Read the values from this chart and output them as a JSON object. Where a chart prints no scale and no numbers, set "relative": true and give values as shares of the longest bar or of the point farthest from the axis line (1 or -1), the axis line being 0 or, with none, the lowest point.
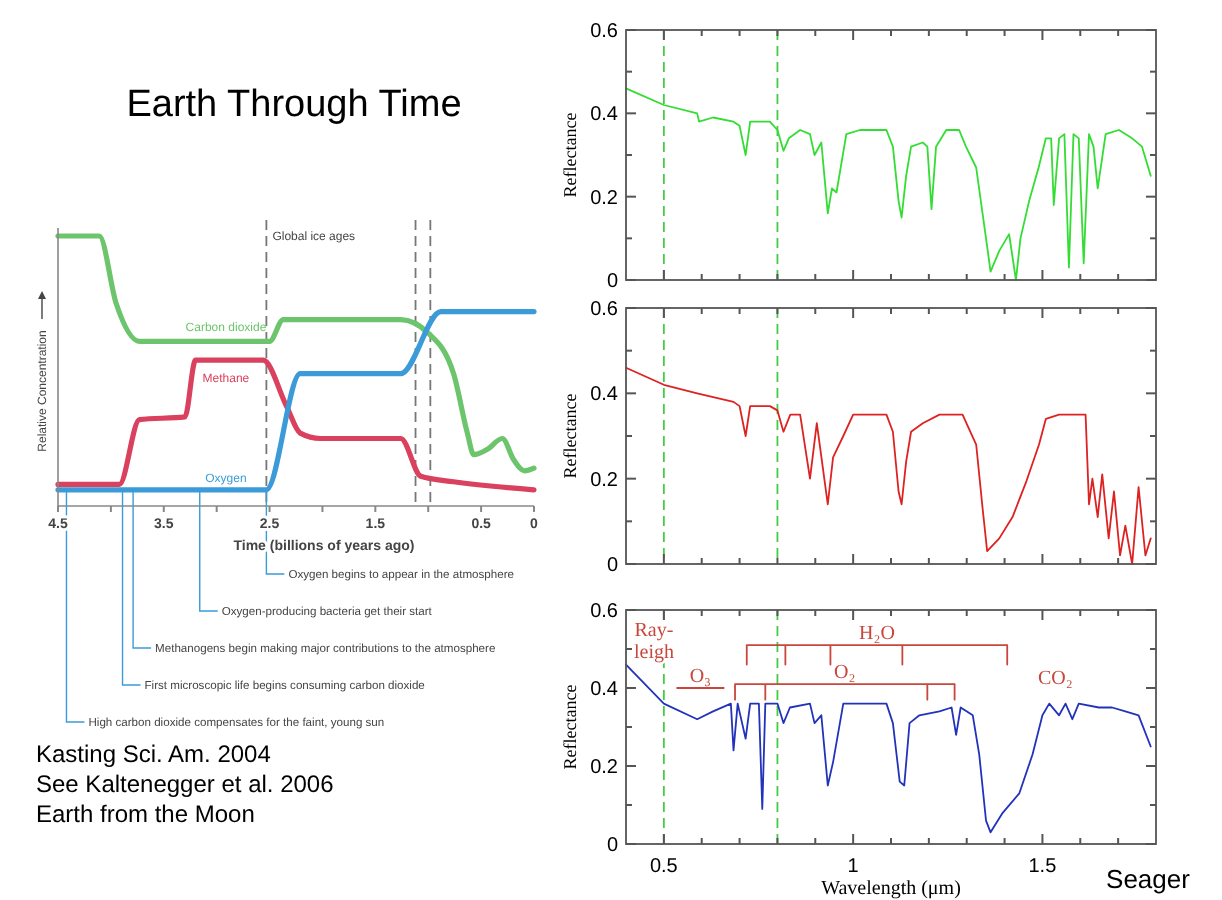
{
  "chart_data": [
    {
      "type": "line",
      "title": "Earth Through Time",
      "xlabel": "Time (billions of years ago)",
      "ylabel": "Relative Concentration",
      "relative": true,
      "xlim": [
        4.5,
        0
      ],
      "xticks": [
        4.5,
        {
          "value": 4,
          "label": null
        },
        3.5,
        {
          "value": 3,
          "label": null
        },
        2.5,
        {
          "value": 2,
          "label": null
        },
        1.5,
        {
          "value": 1,
          "label": null
        },
        0.5,
        0
      ],
      "series": [
        {
          "name": "Carbon dioxide",
          "color": "#6cc46c",
          "x": [
            4.5,
            4.11,
            3.95,
            3.73,
            2.5,
            2.37,
            1.26,
            1.0,
            0.76,
            0.63,
            0.57,
            0.44,
            0.3,
            0.19,
            0.09,
            0
          ],
          "values": [
            1,
            1,
            0.75,
            0.61,
            0.61,
            0.69,
            0.69,
            0.64,
            0.49,
            0.27,
            0.19,
            0.21,
            0.25,
            0.17,
            0.13,
            0.14
          ]
        },
        {
          "name": "Methane",
          "color": "#d9415e",
          "x": [
            4.5,
            3.92,
            3.73,
            3.3,
            3.2,
            2.56,
            2.34,
            2.21,
            2.02,
            1.26,
            1.07,
            0.76,
            0
          ],
          "values": [
            0.08,
            0.08,
            0.32,
            0.33,
            0.54,
            0.54,
            0.37,
            0.27,
            0.25,
            0.25,
            0.11,
            0.09,
            0.06
          ]
        },
        {
          "name": "Oxygen",
          "color": "#3b9bd9",
          "x": [
            4.5,
            2.53,
            2.21,
            1.26,
            0.88,
            0
          ],
          "values": [
            0.06,
            0.06,
            0.49,
            0.49,
            0.72,
            0.72
          ]
        }
      ],
      "ref_lines": [
        {
          "axis": "x",
          "value": 2.53,
          "label": "Global ice ages",
          "line_style": "dashed",
          "color": "#777777"
        },
        {
          "axis": "x",
          "value": 1.12,
          "line_style": "dashed",
          "color": "#777777"
        },
        {
          "axis": "x",
          "value": 0.98,
          "line_style": "dashed",
          "color": "#777777"
        }
      ],
      "annotations": [
        {
          "text": "Oxygen begins to appear in the atmosphere",
          "x": 2.53,
          "y": 0.06
        },
        {
          "text": "Oxygen-producing bacteria get their start",
          "x": 3.16,
          "y": 0.06
        },
        {
          "text": "Methanogens begin making major contributions to the atmosphere",
          "x": 3.79,
          "y": 0.06
        },
        {
          "text": "First microscopic life begins consuming carbon dioxide",
          "x": 3.89,
          "y": 0.06
        },
        {
          "text": "High carbon dioxide compensates for the faint, young sun",
          "x": 4.42,
          "y": 0.06
        },
        "Kasting Sci. Am. 2004",
        "See Kaltenegger et al. 2006",
        "Earth from the Moon"
      ]
    },
    {
      "type": "line",
      "ylabel": "Reflectance",
      "xlim": [
        0.4,
        1.8
      ],
      "ylim": [
        0,
        0.6
      ],
      "tick_labels": "y",
      "xticks": [
        0.5,
        {
          "value": 0.6,
          "label": null
        },
        {
          "value": 0.7,
          "label": null
        },
        {
          "value": 0.8,
          "label": null
        },
        {
          "value": 0.9,
          "label": null
        },
        1,
        {
          "value": 1.1,
          "label": null
        },
        {
          "value": 1.2,
          "label": null
        },
        {
          "value": 1.3,
          "label": null
        },
        {
          "value": 1.4,
          "label": null
        },
        1.5,
        {
          "value": 1.6,
          "label": null
        },
        {
          "value": 1.7,
          "label": null
        }
      ],
      "yticks": [
        0,
        {
          "value": 0.1,
          "label": null
        },
        0.2,
        {
          "value": 0.3,
          "label": null
        },
        0.4,
        {
          "value": 0.5,
          "label": null
        },
        0.6
      ],
      "ref_lines": [
        {
          "axis": "x",
          "value": 0.5,
          "line_style": "dashed",
          "color": "#44cc44"
        },
        {
          "axis": "x",
          "value": 0.8,
          "line_style": "dashed",
          "color": "#44cc44"
        }
      ],
      "series": [
        {
          "color": "#33dd33",
          "x": [
            0.4,
            0.5,
            0.588,
            0.593,
            0.63,
            0.684,
            0.7,
            0.716,
            0.728,
            0.754,
            0.78,
            0.8,
            0.816,
            0.83,
            0.86,
            0.886,
            0.898,
            0.916,
            0.933,
            0.944,
            0.956,
            0.982,
            1.018,
            1.088,
            1.105,
            1.12,
            1.128,
            1.14,
            1.153,
            1.184,
            1.196,
            1.207,
            1.219,
            1.246,
            1.28,
            1.298,
            1.325,
            1.351,
            1.363,
            1.386,
            1.412,
            1.43,
            1.442,
            1.465,
            1.49,
            1.509,
            1.523,
            1.53,
            1.544,
            1.558,
            1.57,
            1.582,
            1.596,
            1.609,
            1.623,
            1.635,
            1.646,
            1.667,
            1.702,
            1.737,
            1.763,
            1.786
          ],
          "values": [
            0.46,
            0.42,
            0.4,
            0.38,
            0.39,
            0.38,
            0.37,
            0.3,
            0.38,
            0.38,
            0.38,
            0.36,
            0.31,
            0.34,
            0.36,
            0.35,
            0.3,
            0.33,
            0.16,
            0.22,
            0.21,
            0.35,
            0.36,
            0.36,
            0.32,
            0.19,
            0.15,
            0.25,
            0.32,
            0.33,
            0.32,
            0.17,
            0.32,
            0.36,
            0.36,
            0.32,
            0.27,
            0.1,
            0.02,
            0.07,
            0.11,
            0,
            0.1,
            0.19,
            0.27,
            0.34,
            0.34,
            0.18,
            0.34,
            0.35,
            0.03,
            0.35,
            0.34,
            0.04,
            0.35,
            0.32,
            0.22,
            0.35,
            0.36,
            0.34,
            0.32,
            0.25
          ]
        }
      ]
    },
    {
      "type": "line",
      "ylabel": "Reflectance",
      "xlim": [
        0.4,
        1.8
      ],
      "ylim": [
        0,
        0.6
      ],
      "tick_labels": "y",
      "xticks": [
        0.5,
        {
          "value": 0.6,
          "label": null
        },
        {
          "value": 0.7,
          "label": null
        },
        {
          "value": 0.8,
          "label": null
        },
        {
          "value": 0.9,
          "label": null
        },
        1,
        {
          "value": 1.1,
          "label": null
        },
        {
          "value": 1.2,
          "label": null
        },
        {
          "value": 1.3,
          "label": null
        },
        {
          "value": 1.4,
          "label": null
        },
        1.5,
        {
          "value": 1.6,
          "label": null
        },
        {
          "value": 1.7,
          "label": null
        }
      ],
      "yticks": [
        0,
        {
          "value": 0.1,
          "label": null
        },
        0.2,
        {
          "value": 0.3,
          "label": null
        },
        0.4,
        {
          "value": 0.5,
          "label": null
        },
        0.6
      ],
      "ref_lines": [
        {
          "axis": "x",
          "value": 0.5,
          "line_style": "dashed",
          "color": "#44cc44"
        },
        {
          "axis": "x",
          "value": 0.8,
          "line_style": "dashed",
          "color": "#44cc44"
        }
      ],
      "series": [
        {
          "color": "#dd2222",
          "x": [
            0.4,
            0.5,
            0.588,
            0.684,
            0.7,
            0.716,
            0.728,
            0.78,
            0.8,
            0.816,
            0.834,
            0.86,
            0.886,
            0.904,
            0.933,
            0.947,
            0.974,
            1.0,
            1.018,
            1.088,
            1.105,
            1.12,
            1.128,
            1.14,
            1.153,
            1.184,
            1.228,
            1.289,
            1.325,
            1.342,
            1.354,
            1.386,
            1.421,
            1.456,
            1.491,
            1.509,
            1.544,
            1.614,
            1.623,
            1.632,
            1.646,
            1.658,
            1.675,
            1.689,
            1.705,
            1.719,
            1.737,
            1.754,
            1.772,
            1.786
          ],
          "values": [
            0.46,
            0.42,
            0.4,
            0.38,
            0.37,
            0.3,
            0.37,
            0.37,
            0.36,
            0.31,
            0.35,
            0.35,
            0.2,
            0.33,
            0.14,
            0.25,
            0.3,
            0.35,
            0.35,
            0.35,
            0.31,
            0.17,
            0.14,
            0.24,
            0.31,
            0.33,
            0.35,
            0.35,
            0.28,
            0.13,
            0.03,
            0.06,
            0.11,
            0.19,
            0.28,
            0.34,
            0.35,
            0.35,
            0.14,
            0.2,
            0.11,
            0.21,
            0.06,
            0.17,
            0.02,
            0.09,
            0,
            0.18,
            0.02,
            0.06
          ]
        }
      ]
    },
    {
      "type": "line",
      "ylabel": "Reflectance",
      "xlabel": "Wavelength (μm)",
      "xlim": [
        0.4,
        1.8
      ],
      "ylim": [
        0,
        0.6
      ],
      "xticks": [
        0.5,
        {
          "value": 0.6,
          "label": null
        },
        {
          "value": 0.7,
          "label": null
        },
        {
          "value": 0.8,
          "label": null
        },
        {
          "value": 0.9,
          "label": null
        },
        1,
        {
          "value": 1.1,
          "label": null
        },
        {
          "value": 1.2,
          "label": null
        },
        {
          "value": 1.3,
          "label": null
        },
        {
          "value": 1.4,
          "label": null
        },
        1.5,
        {
          "value": 1.6,
          "label": null
        },
        {
          "value": 1.7,
          "label": null
        }
      ],
      "yticks": [
        0,
        {
          "value": 0.1,
          "label": null
        },
        0.2,
        {
          "value": 0.3,
          "label": null
        },
        0.4,
        {
          "value": 0.5,
          "label": null
        },
        0.6
      ],
      "ref_lines": [
        {
          "axis": "x",
          "value": 0.5,
          "line_style": "dashed",
          "color": "#44cc44"
        },
        {
          "axis": "x",
          "value": 0.8,
          "line_style": "dashed",
          "color": "#44cc44"
        }
      ],
      "annotations": [
        "Ray-leigh",
        "CO₂",
        "Seager"
      ],
      "series": [
        {
          "name": "O₃",
          "color": "#c8463c",
          "x": [
            0.535,
            0.658
          ],
          "values": [
            0.4,
            0.4
          ]
        },
        {
          "name": "O₂",
          "color": "#c8463c",
          "x": [
            0.688,
            0.688,
            0.768,
            0.768,
            0.768,
            1.196,
            1.196,
            1.196,
            1.268,
            1.268
          ],
          "values": [
            0.37,
            0.41,
            0.41,
            0.37,
            0.41,
            0.41,
            0.37,
            0.41,
            0.41,
            0.37
          ]
        },
        {
          "name": "H₂O",
          "color": "#c8463c",
          "x": [
            0.719,
            0.719,
            0.821,
            0.821,
            0.821,
            0.94,
            0.94,
            0.94,
            1.13,
            1.13,
            1.13,
            1.407,
            1.407
          ],
          "values": [
            0.46,
            0.51,
            0.51,
            0.46,
            0.51,
            0.51,
            0.46,
            0.51,
            0.51,
            0.46,
            0.51,
            0.51,
            0.46
          ]
        },
        {
          "color": "#2233bb",
          "x": [
            0.4,
            0.5,
            0.588,
            0.63,
            0.677,
            0.684,
            0.695,
            0.716,
            0.728,
            0.751,
            0.76,
            0.768,
            0.8,
            0.816,
            0.833,
            0.886,
            0.898,
            0.916,
            0.933,
            0.947,
            0.974,
            1.088,
            1.105,
            1.123,
            1.135,
            1.149,
            1.175,
            1.228,
            1.26,
            1.272,
            1.284,
            1.316,
            1.333,
            1.351,
            1.363,
            1.395,
            1.439,
            1.474,
            1.5,
            1.518,
            1.544,
            1.561,
            1.579,
            1.596,
            1.649,
            1.684,
            1.719,
            1.754,
            1.786
          ],
          "values": [
            0.46,
            0.36,
            0.32,
            0.34,
            0.36,
            0.24,
            0.36,
            0.27,
            0.36,
            0.36,
            0.09,
            0.36,
            0.36,
            0.31,
            0.35,
            0.36,
            0.31,
            0.33,
            0.15,
            0.21,
            0.36,
            0.36,
            0.31,
            0.16,
            0.15,
            0.31,
            0.33,
            0.34,
            0.35,
            0.28,
            0.35,
            0.33,
            0.23,
            0.06,
            0.03,
            0.08,
            0.13,
            0.23,
            0.33,
            0.36,
            0.33,
            0.36,
            0.32,
            0.36,
            0.35,
            0.35,
            0.34,
            0.33,
            0.25
          ]
        }
      ]
    }
  ]
}
